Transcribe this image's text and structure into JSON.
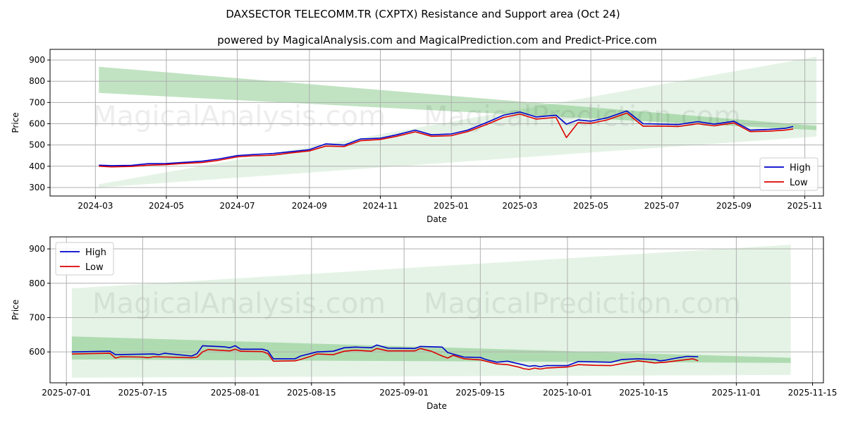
{
  "title": "DAXSECTOR TELECOMM.TR (CXPTX) Resistance and Support area (Oct 24)",
  "subtitle": "powered by MagicalAnalysis.com and MagicalPrediction.com and Predict-Price.com",
  "watermarks": [
    "MagicalAnalysis.com",
    "MagicalPrediction.com"
  ],
  "colors": {
    "high": "#0000cc",
    "low": "#dd0000",
    "band": "#4caf50"
  },
  "chart_data": [
    {
      "type": "line",
      "panel": "top",
      "xlabel": "Date",
      "ylabel": "Price",
      "xlim": [
        "2024-01-22",
        "2025-11-17"
      ],
      "ylim": [
        260,
        950
      ],
      "xticks": [
        "2024-03",
        "2024-05",
        "2024-07",
        "2024-09",
        "2024-11",
        "2025-01",
        "2025-03",
        "2025-05",
        "2025-07",
        "2025-09",
        "2025-11"
      ],
      "yticks": [
        300,
        400,
        500,
        600,
        700,
        800,
        900
      ],
      "legend": {
        "position": "lower-right",
        "entries": [
          "High",
          "Low"
        ]
      },
      "bands": [
        {
          "name": "resistance",
          "start": "2024-03-04",
          "end": "2025-11-11",
          "start_range": [
            745,
            868
          ],
          "end_range": [
            570,
            590
          ]
        },
        {
          "name": "support",
          "start": "2024-03-04",
          "end": "2025-11-11",
          "start_range": [
            300,
            315
          ],
          "end_range": [
            540,
            915
          ]
        }
      ],
      "series": [
        {
          "name": "High",
          "points": [
            [
              "2024-03-04",
              405
            ],
            [
              "2024-03-15",
              403
            ],
            [
              "2024-04-01",
              404
            ],
            [
              "2024-04-15",
              412
            ],
            [
              "2024-05-01",
              413
            ],
            [
              "2024-05-15",
              418
            ],
            [
              "2024-06-01",
              424
            ],
            [
              "2024-06-15",
              434
            ],
            [
              "2024-07-01",
              450
            ],
            [
              "2024-07-15",
              455
            ],
            [
              "2024-08-01",
              460
            ],
            [
              "2024-08-15",
              468
            ],
            [
              "2024-09-01",
              478
            ],
            [
              "2024-09-15",
              505
            ],
            [
              "2024-10-01",
              500
            ],
            [
              "2024-10-15",
              528
            ],
            [
              "2024-11-01",
              532
            ],
            [
              "2024-11-15",
              548
            ],
            [
              "2024-12-01",
              570
            ],
            [
              "2024-12-15",
              548
            ],
            [
              "2025-01-01",
              552
            ],
            [
              "2025-01-15",
              570
            ],
            [
              "2025-02-01",
              607
            ],
            [
              "2025-02-15",
              640
            ],
            [
              "2025-03-01",
              655
            ],
            [
              "2025-03-15",
              632
            ],
            [
              "2025-04-01",
              640
            ],
            [
              "2025-04-10",
              598
            ],
            [
              "2025-04-20",
              618
            ],
            [
              "2025-05-01",
              612
            ],
            [
              "2025-05-15",
              628
            ],
            [
              "2025-06-01",
              660
            ],
            [
              "2025-06-15",
              600
            ],
            [
              "2025-07-01",
              598
            ],
            [
              "2025-07-15",
              596
            ],
            [
              "2025-08-01",
              610
            ],
            [
              "2025-08-15",
              598
            ],
            [
              "2025-09-01",
              612
            ],
            [
              "2025-09-15",
              570
            ],
            [
              "2025-10-01",
              573
            ],
            [
              "2025-10-15",
              578
            ],
            [
              "2025-10-22",
              587
            ]
          ]
        },
        {
          "name": "Low",
          "points": [
            [
              "2024-03-04",
              400
            ],
            [
              "2024-03-15",
              397
            ],
            [
              "2024-04-01",
              399
            ],
            [
              "2024-04-15",
              405
            ],
            [
              "2024-05-01",
              408
            ],
            [
              "2024-05-15",
              413
            ],
            [
              "2024-06-01",
              418
            ],
            [
              "2024-06-15",
              428
            ],
            [
              "2024-07-01",
              444
            ],
            [
              "2024-07-15",
              449
            ],
            [
              "2024-08-01",
              452
            ],
            [
              "2024-08-15",
              462
            ],
            [
              "2024-09-01",
              472
            ],
            [
              "2024-09-15",
              495
            ],
            [
              "2024-10-01",
              493
            ],
            [
              "2024-10-15",
              520
            ],
            [
              "2024-11-01",
              526
            ],
            [
              "2024-11-15",
              541
            ],
            [
              "2024-12-01",
              562
            ],
            [
              "2024-12-15",
              541
            ],
            [
              "2025-01-01",
              544
            ],
            [
              "2025-01-15",
              563
            ],
            [
              "2025-02-01",
              598
            ],
            [
              "2025-02-15",
              630
            ],
            [
              "2025-03-01",
              645
            ],
            [
              "2025-03-15",
              622
            ],
            [
              "2025-04-01",
              630
            ],
            [
              "2025-04-10",
              535
            ],
            [
              "2025-04-20",
              605
            ],
            [
              "2025-05-01",
              602
            ],
            [
              "2025-05-15",
              618
            ],
            [
              "2025-06-01",
              650
            ],
            [
              "2025-06-15",
              588
            ],
            [
              "2025-07-01",
              589
            ],
            [
              "2025-07-15",
              587
            ],
            [
              "2025-08-01",
              600
            ],
            [
              "2025-08-15",
              590
            ],
            [
              "2025-09-01",
              604
            ],
            [
              "2025-09-15",
              563
            ],
            [
              "2025-10-01",
              565
            ],
            [
              "2025-10-15",
              570
            ],
            [
              "2025-10-22",
              575
            ]
          ]
        }
      ]
    },
    {
      "type": "line",
      "panel": "bottom",
      "xlabel": "Date",
      "ylabel": "Price",
      "xlim": [
        "2025-06-28",
        "2025-11-17"
      ],
      "ylim": [
        510,
        935
      ],
      "xticks": [
        "2025-07-01",
        "2025-07-15",
        "2025-08-01",
        "2025-08-15",
        "2025-09-01",
        "2025-09-15",
        "2025-10-01",
        "2025-10-15",
        "2025-11-01",
        "2025-11-15"
      ],
      "yticks": [
        600,
        700,
        800,
        900
      ],
      "legend": {
        "position": "upper-left",
        "entries": [
          "High",
          "Low"
        ]
      },
      "bands": [
        {
          "name": "resistance",
          "start": "2025-07-02",
          "end": "2025-11-11",
          "start_range": [
            578,
            645
          ],
          "end_range": [
            568,
            583
          ]
        },
        {
          "name": "support",
          "start": "2025-07-02",
          "end": "2025-11-11",
          "start_range": [
            525,
            785
          ],
          "end_range": [
            533,
            912
          ]
        }
      ],
      "series": [
        {
          "name": "High",
          "points": [
            [
              "2025-07-02",
              600
            ],
            [
              "2025-07-09",
              602
            ],
            [
              "2025-07-10",
              592
            ],
            [
              "2025-07-17",
              594
            ],
            [
              "2025-07-18",
              592
            ],
            [
              "2025-07-19",
              596
            ],
            [
              "2025-07-24",
              588
            ],
            [
              "2025-07-25",
              595
            ],
            [
              "2025-07-26",
              618
            ],
            [
              "2025-07-30",
              615
            ],
            [
              "2025-07-31",
              612
            ],
            [
              "2025-08-01",
              618
            ],
            [
              "2025-08-02",
              608
            ],
            [
              "2025-08-06",
              608
            ],
            [
              "2025-08-07",
              603
            ],
            [
              "2025-08-08",
              580
            ],
            [
              "2025-08-12",
              580
            ],
            [
              "2025-08-13",
              588
            ],
            [
              "2025-08-16",
              600
            ],
            [
              "2025-08-19",
              602
            ],
            [
              "2025-08-21",
              612
            ],
            [
              "2025-08-23",
              614
            ],
            [
              "2025-08-26",
              612
            ],
            [
              "2025-08-27",
              620
            ],
            [
              "2025-08-29",
              611
            ],
            [
              "2025-09-03",
              610
            ],
            [
              "2025-09-04",
              616
            ],
            [
              "2025-09-08",
              614
            ],
            [
              "2025-09-09",
              598
            ],
            [
              "2025-09-12",
              585
            ],
            [
              "2025-09-15",
              584
            ],
            [
              "2025-09-16",
              578
            ],
            [
              "2025-09-18",
              570
            ],
            [
              "2025-09-20",
              573
            ],
            [
              "2025-09-23",
              562
            ],
            [
              "2025-09-24",
              558
            ],
            [
              "2025-09-25",
              560
            ],
            [
              "2025-09-26",
              557
            ],
            [
              "2025-09-27",
              560
            ],
            [
              "2025-10-01",
              560
            ],
            [
              "2025-10-03",
              572
            ],
            [
              "2025-10-06",
              571
            ],
            [
              "2025-10-09",
              570
            ],
            [
              "2025-10-11",
              578
            ],
            [
              "2025-10-14",
              580
            ],
            [
              "2025-10-17",
              578
            ],
            [
              "2025-10-18",
              574
            ],
            [
              "2025-10-19",
              576
            ],
            [
              "2025-10-21",
              582
            ],
            [
              "2025-10-23",
              587
            ],
            [
              "2025-10-25",
              586
            ]
          ]
        },
        {
          "name": "Low",
          "points": [
            [
              "2025-07-02",
              594
            ],
            [
              "2025-07-09",
              596
            ],
            [
              "2025-07-10",
              582
            ],
            [
              "2025-07-11",
              586
            ],
            [
              "2025-07-15",
              585
            ],
            [
              "2025-07-16",
              583
            ],
            [
              "2025-07-17",
              586
            ],
            [
              "2025-07-24",
              583
            ],
            [
              "2025-07-25",
              585
            ],
            [
              "2025-07-26",
              600
            ],
            [
              "2025-07-27",
              607
            ],
            [
              "2025-07-31",
              603
            ],
            [
              "2025-08-01",
              608
            ],
            [
              "2025-08-02",
              602
            ],
            [
              "2025-08-06",
              601
            ],
            [
              "2025-08-07",
              595
            ],
            [
              "2025-08-08",
              573
            ],
            [
              "2025-08-12",
              574
            ],
            [
              "2025-08-13",
              578
            ],
            [
              "2025-08-15",
              588
            ],
            [
              "2025-08-16",
              594
            ],
            [
              "2025-08-19",
              592
            ],
            [
              "2025-08-21",
              602
            ],
            [
              "2025-08-23",
              605
            ],
            [
              "2025-08-26",
              602
            ],
            [
              "2025-08-27",
              610
            ],
            [
              "2025-08-29",
              603
            ],
            [
              "2025-09-03",
              603
            ],
            [
              "2025-09-04",
              610
            ],
            [
              "2025-09-06",
              602
            ],
            [
              "2025-09-08",
              588
            ],
            [
              "2025-09-09",
              582
            ],
            [
              "2025-09-10",
              590
            ],
            [
              "2025-09-12",
              580
            ],
            [
              "2025-09-15",
              577
            ],
            [
              "2025-09-18",
              565
            ],
            [
              "2025-09-20",
              563
            ],
            [
              "2025-09-22",
              556
            ],
            [
              "2025-09-23",
              551
            ],
            [
              "2025-09-24",
              549
            ],
            [
              "2025-09-25",
              553
            ],
            [
              "2025-09-26",
              550
            ],
            [
              "2025-09-27",
              553
            ],
            [
              "2025-10-01",
              556
            ],
            [
              "2025-10-03",
              563
            ],
            [
              "2025-10-06",
              561
            ],
            [
              "2025-10-09",
              560
            ],
            [
              "2025-10-11",
              566
            ],
            [
              "2025-10-14",
              574
            ],
            [
              "2025-10-17",
              568
            ],
            [
              "2025-10-19",
              570
            ],
            [
              "2025-10-21",
              574
            ],
            [
              "2025-10-24",
              580
            ],
            [
              "2025-10-25",
              574
            ]
          ]
        }
      ]
    }
  ]
}
